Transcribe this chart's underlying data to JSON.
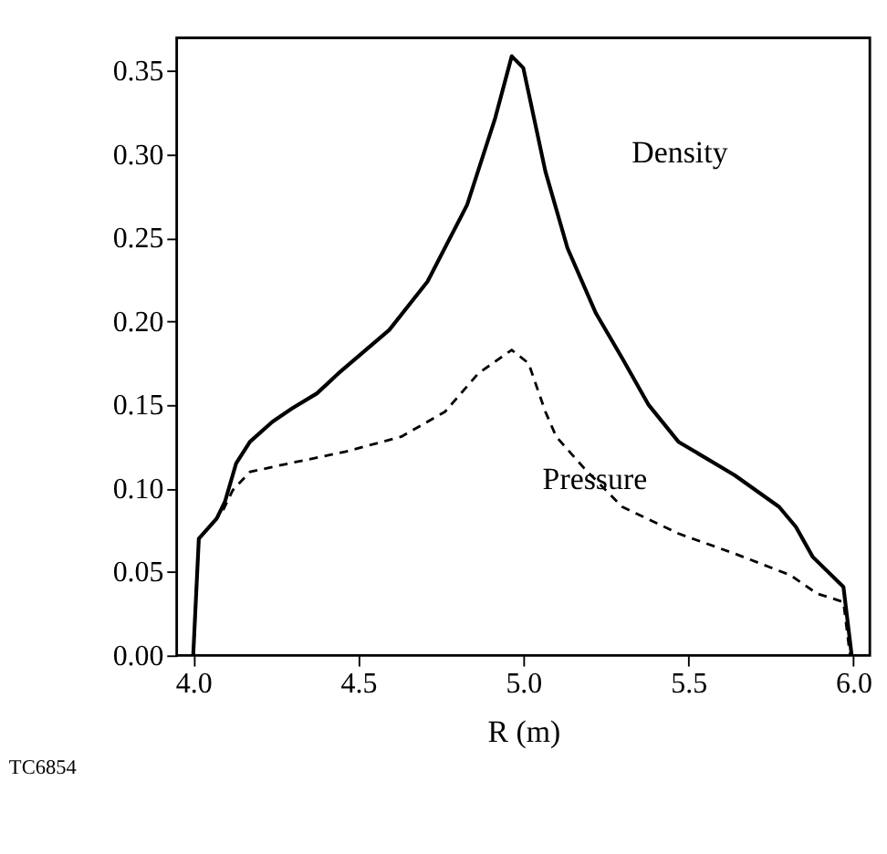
{
  "chart_data": {
    "type": "line",
    "xlabel": "R (m)",
    "xlim": [
      3.95,
      6.05
    ],
    "xticks": [
      {
        "value": 4.0,
        "label": "4.0"
      },
      4.5,
      {
        "value": 5.0,
        "label": "5.0"
      },
      5.5,
      {
        "value": 6.0,
        "label": "6.0"
      }
    ],
    "ylim": [
      0,
      0.37
    ],
    "yticks": [
      {
        "value": 0,
        "label": "0.00"
      },
      0.05,
      {
        "value": 0.1,
        "label": "0.10"
      },
      0.15,
      {
        "value": 0.2,
        "label": "0.20"
      },
      0.25,
      {
        "value": 0.3,
        "label": "0.30"
      },
      0.35
    ],
    "grid": false,
    "legend": false,
    "marker": "none",
    "series": [
      {
        "name": "Density",
        "color": "#000000",
        "line_style": "solid",
        "x": [
          4.0,
          4.017,
          4.071,
          4.096,
          4.13,
          4.172,
          4.24,
          4.3,
          4.375,
          4.44,
          4.594,
          4.71,
          4.83,
          4.915,
          4.965,
          5.0,
          5.067,
          5.134,
          5.22,
          5.3,
          5.38,
          5.47,
          5.64,
          5.775,
          5.826,
          5.877,
          5.97,
          5.995
        ],
        "values": [
          0,
          0.07,
          0.082,
          0.092,
          0.115,
          0.128,
          0.14,
          0.148,
          0.157,
          0.169,
          0.195,
          0.224,
          0.27,
          0.322,
          0.359,
          0.352,
          0.29,
          0.244,
          0.205,
          0.178,
          0.15,
          0.128,
          0.108,
          0.089,
          0.077,
          0.059,
          0.041,
          0
        ]
      },
      {
        "name": "Pressure",
        "color": "#000000",
        "line_style": "dashed",
        "x": [
          4.0,
          4.017,
          4.088,
          4.12,
          4.172,
          4.29,
          4.46,
          4.63,
          4.763,
          4.864,
          4.965,
          5.016,
          5.067,
          5.1,
          5.185,
          5.3,
          5.47,
          5.64,
          5.81,
          5.89,
          5.97,
          5.99
        ],
        "values": [
          0,
          0.07,
          0.086,
          0.099,
          0.11,
          0.115,
          0.122,
          0.131,
          0.146,
          0.169,
          0.183,
          0.175,
          0.146,
          0.131,
          0.112,
          0.089,
          0.073,
          0.061,
          0.048,
          0.037,
          0.032,
          0
        ]
      }
    ],
    "annotations": [
      "TC6854"
    ]
  }
}
